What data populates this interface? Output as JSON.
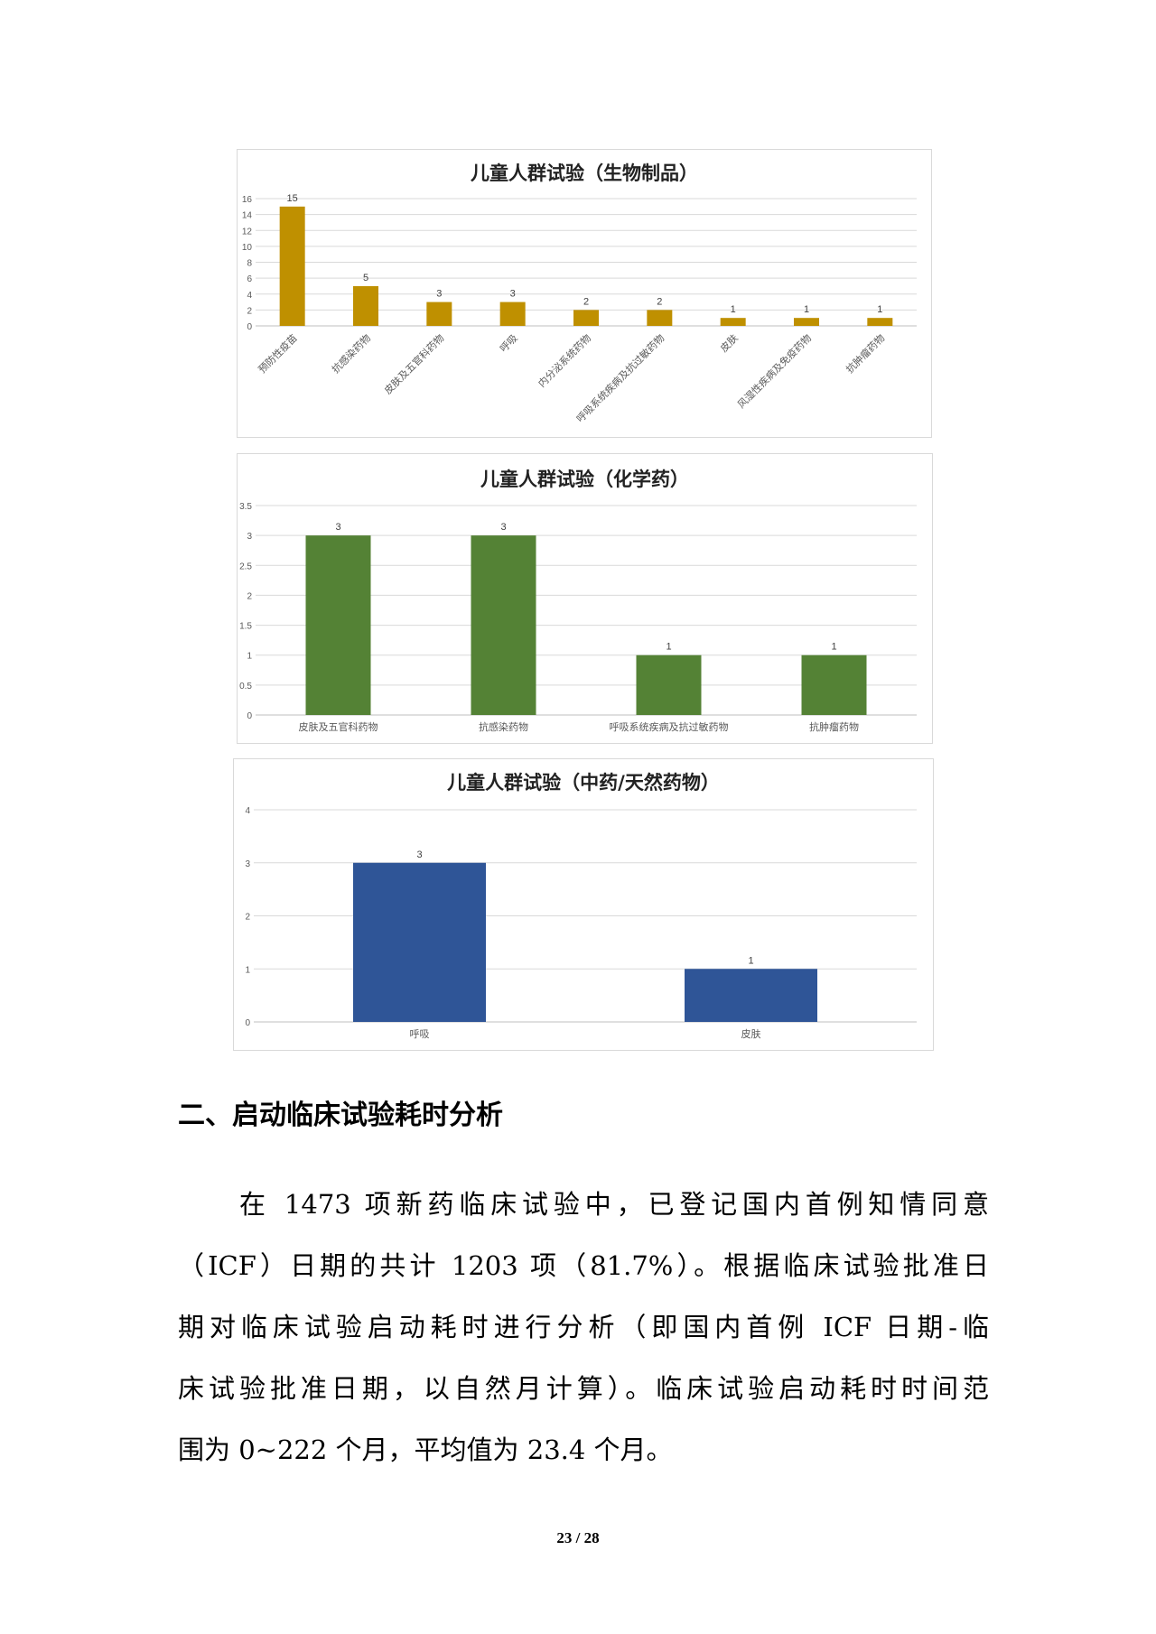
{
  "chart_data": [
    {
      "type": "bar",
      "title": "儿童人群试验（生物制品）",
      "categories": [
        "预防性疫苗",
        "抗感染药物",
        "皮肤及五官科药物",
        "呼吸",
        "内分泌系统药物",
        "呼吸系统疾病及抗过敏药物",
        "皮肤",
        "风湿性疾病及免疫药物",
        "抗肿瘤药物"
      ],
      "values": [
        15,
        5,
        3,
        3,
        2,
        2,
        1,
        1,
        1
      ],
      "ylim": [
        0,
        16
      ],
      "yticks": [
        0,
        2,
        4,
        6,
        8,
        10,
        12,
        14,
        16
      ],
      "color": "#BF9000",
      "grid": true,
      "data_labels": true,
      "xlabel_rotation": "diagonal"
    },
    {
      "type": "bar",
      "title": "儿童人群试验（化学药）",
      "categories": [
        "皮肤及五官科药物",
        "抗感染药物",
        "呼吸系统疾病及抗过敏药物",
        "抗肿瘤药物"
      ],
      "values": [
        3,
        3,
        1,
        1
      ],
      "ylim": [
        0,
        3.5
      ],
      "yticks": [
        0,
        0.5,
        1,
        1.5,
        2,
        2.5,
        3,
        3.5
      ],
      "color": "#548235",
      "grid": true,
      "data_labels": true
    },
    {
      "type": "bar",
      "title": "儿童人群试验（中药/天然药物）",
      "categories": [
        "呼吸",
        "皮肤"
      ],
      "values": [
        3,
        1
      ],
      "ylim": [
        0,
        4
      ],
      "yticks": [
        0,
        1,
        2,
        3,
        4
      ],
      "color": "#2F5597",
      "grid": true,
      "data_labels": true
    }
  ],
  "section": {
    "heading": "二、启动临床试验耗时分析",
    "paragraph_lines": [
      "在 1473 项新药临床试验中，已登记国内首例知情同意",
      "（ICF）日期的共计 1203 项（81.7%）。根据临床试验批准日",
      "期对临床试验启动耗时进行分析（即国内首例 ICF 日期-临",
      "床试验批准日期，以自然月计算）。临床试验启动耗时时间范",
      "围为 0~222 个月，平均值为 23.4 个月。"
    ]
  },
  "footer": {
    "page_number": "23 / 28"
  }
}
